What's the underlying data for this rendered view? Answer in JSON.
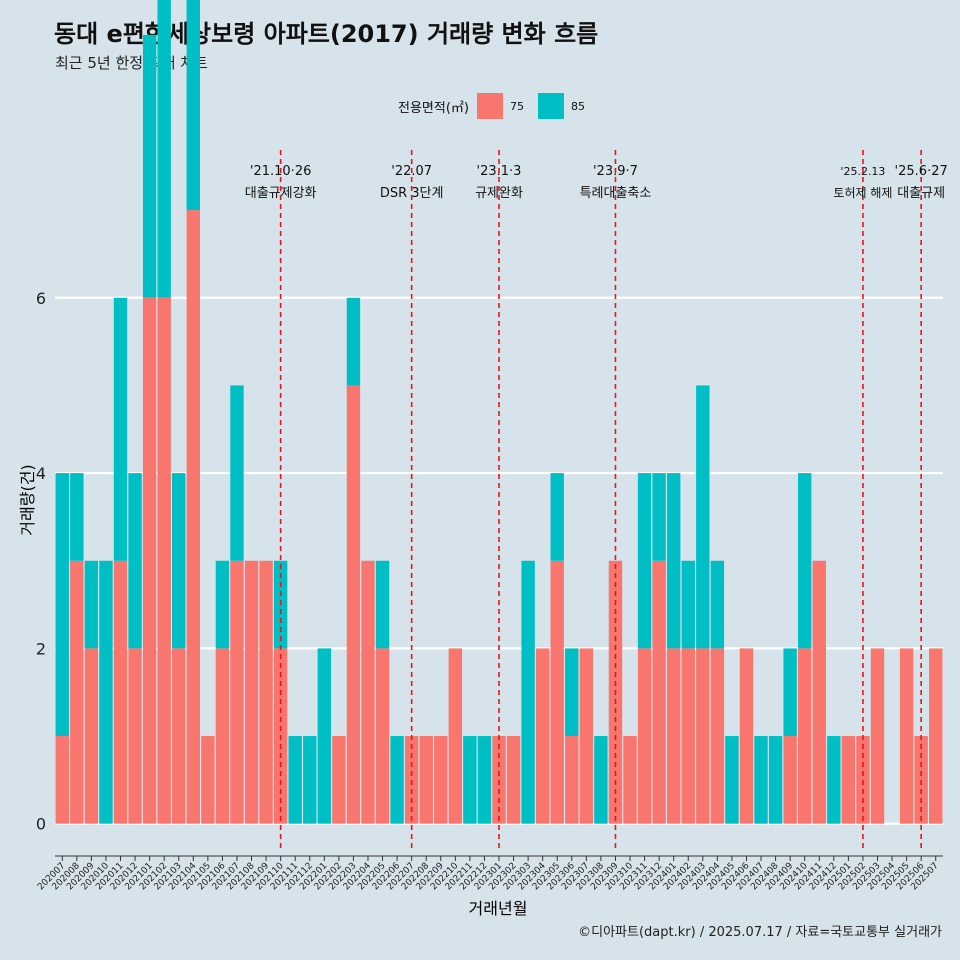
{
  "title": "동대 e편한세상보령 아파트(2017) 거래량 변화 흐름",
  "subtitle": "최근 5년 한정 확대 차트",
  "legend": {
    "title": "전용면적(㎡)",
    "items": [
      {
        "label": "75",
        "color": "#F8766D"
      },
      {
        "label": "85",
        "color": "#00BFC4"
      }
    ]
  },
  "caption": "©디아파트(dapt.kr) / 2025.07.17 / 자료=국토교통부 실거래가",
  "colors": {
    "background": "#d6e3ea",
    "gridline": "#ffffff",
    "event_line": "#e8141a"
  },
  "chart_data": {
    "type": "bar",
    "xlabel": "거래년월",
    "ylabel": "거래량(건)",
    "ylim": [
      -0.3,
      7.8
    ],
    "yticks": [
      0,
      2,
      4,
      6
    ],
    "grid": true,
    "legend_position": "top",
    "months": [
      "202007",
      "202008",
      "202009",
      "202010",
      "202011",
      "202012",
      "202101",
      "202102",
      "202103",
      "202104",
      "202105",
      "202106",
      "202107",
      "202108",
      "202109",
      "202110",
      "202111",
      "202112",
      "202201",
      "202202",
      "202203",
      "202204",
      "202205",
      "202206",
      "202207",
      "202208",
      "202209",
      "202210",
      "202211",
      "202212",
      "202301",
      "202302",
      "202303",
      "202304",
      "202305",
      "202306",
      "202307",
      "202308",
      "202309",
      "202310",
      "202311",
      "202312",
      "202401",
      "202402",
      "202403",
      "202404",
      "202405",
      "202406",
      "202407",
      "202408",
      "202409",
      "202410",
      "202411",
      "202412",
      "202501",
      "202502",
      "202503",
      "202504",
      "202505",
      "202506",
      "202507"
    ],
    "series": [
      {
        "name": "75",
        "color": "#F8766D",
        "values": [
          1,
          3,
          2,
          0,
          3,
          2,
          6,
          6,
          2,
          7,
          1,
          2,
          3,
          3,
          3,
          2,
          0,
          0,
          0,
          1,
          5,
          3,
          2,
          0,
          1,
          1,
          1,
          2,
          0,
          0,
          1,
          1,
          0,
          2,
          3,
          1,
          2,
          0,
          3,
          1,
          2,
          3,
          2,
          2,
          2,
          2,
          0,
          2,
          0,
          0,
          1,
          2,
          3,
          0,
          1,
          1,
          2,
          0,
          2,
          1,
          2
        ]
      },
      {
        "name": "85",
        "color": "#00BFC4",
        "values": [
          3,
          1,
          1,
          3,
          3,
          2,
          3,
          4,
          2,
          3,
          0,
          1,
          2,
          0,
          0,
          1,
          1,
          1,
          2,
          0,
          1,
          0,
          1,
          1,
          0,
          0,
          0,
          0,
          1,
          1,
          0,
          0,
          3,
          0,
          1,
          1,
          0,
          1,
          0,
          0,
          2,
          1,
          2,
          1,
          3,
          1,
          1,
          0,
          1,
          1,
          1,
          2,
          0,
          1,
          0,
          0,
          0,
          0,
          0,
          0,
          0
        ]
      }
    ],
    "events": [
      {
        "month": "202110",
        "date": "'21.10·26",
        "label": "대출규제강화"
      },
      {
        "month": "202207",
        "date": "'22.07",
        "label": "DSR 3단계"
      },
      {
        "month": "202301",
        "date": "'23.1·3",
        "label": "규제완화"
      },
      {
        "month": "202309",
        "date": "'23.9·7",
        "label": "특례대출축소"
      },
      {
        "month": "202502",
        "date": "'25.2.13",
        "label": "토허제 해제"
      },
      {
        "month": "202506",
        "date": "'25.6·27",
        "label": "대출규제"
      }
    ]
  }
}
